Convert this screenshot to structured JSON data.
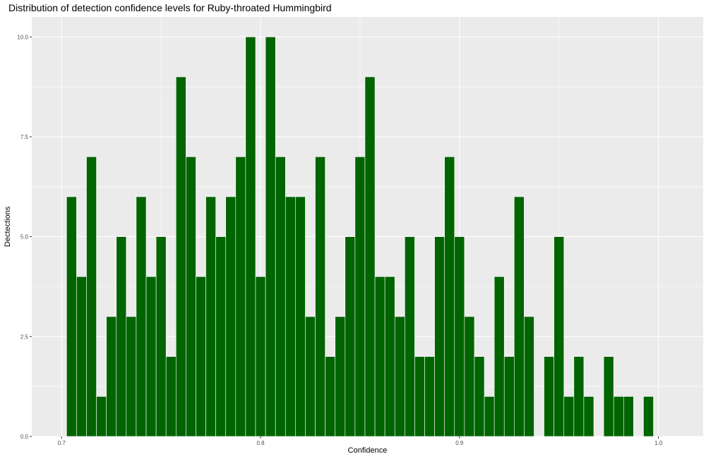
{
  "chart_data": {
    "type": "bar",
    "title": "Distribution of detection confidence levels for Ruby-throated Hummingbird",
    "xlabel": "Confidence",
    "ylabel": "Dectections",
    "xlim": [
      0.685,
      1.0225
    ],
    "ylim": [
      0,
      10.5
    ],
    "x_ticks": [
      "0.7",
      "0.8",
      "0.9",
      "1.0"
    ],
    "y_ticks": [
      "0.0",
      "2.5",
      "5.0",
      "7.5",
      "10.0"
    ],
    "bin_start": 0.7025,
    "bin_width": 0.005,
    "values": [
      6,
      4,
      7,
      1,
      3,
      5,
      3,
      6,
      4,
      5,
      2,
      9,
      7,
      4,
      6,
      5,
      6,
      7,
      10,
      4,
      10,
      7,
      6,
      6,
      3,
      7,
      2,
      3,
      5,
      7,
      9,
      4,
      4,
      3,
      5,
      2,
      2,
      5,
      7,
      5,
      3,
      2,
      1,
      4,
      2,
      6,
      3,
      0,
      2,
      5,
      1,
      2,
      1,
      0,
      2,
      1,
      1,
      0,
      1
    ],
    "grid": true,
    "colors": {
      "bar_fill": "#006400",
      "bar_border": "#ffffff",
      "panel": "#ebebeb",
      "grid": "#ffffff"
    }
  }
}
